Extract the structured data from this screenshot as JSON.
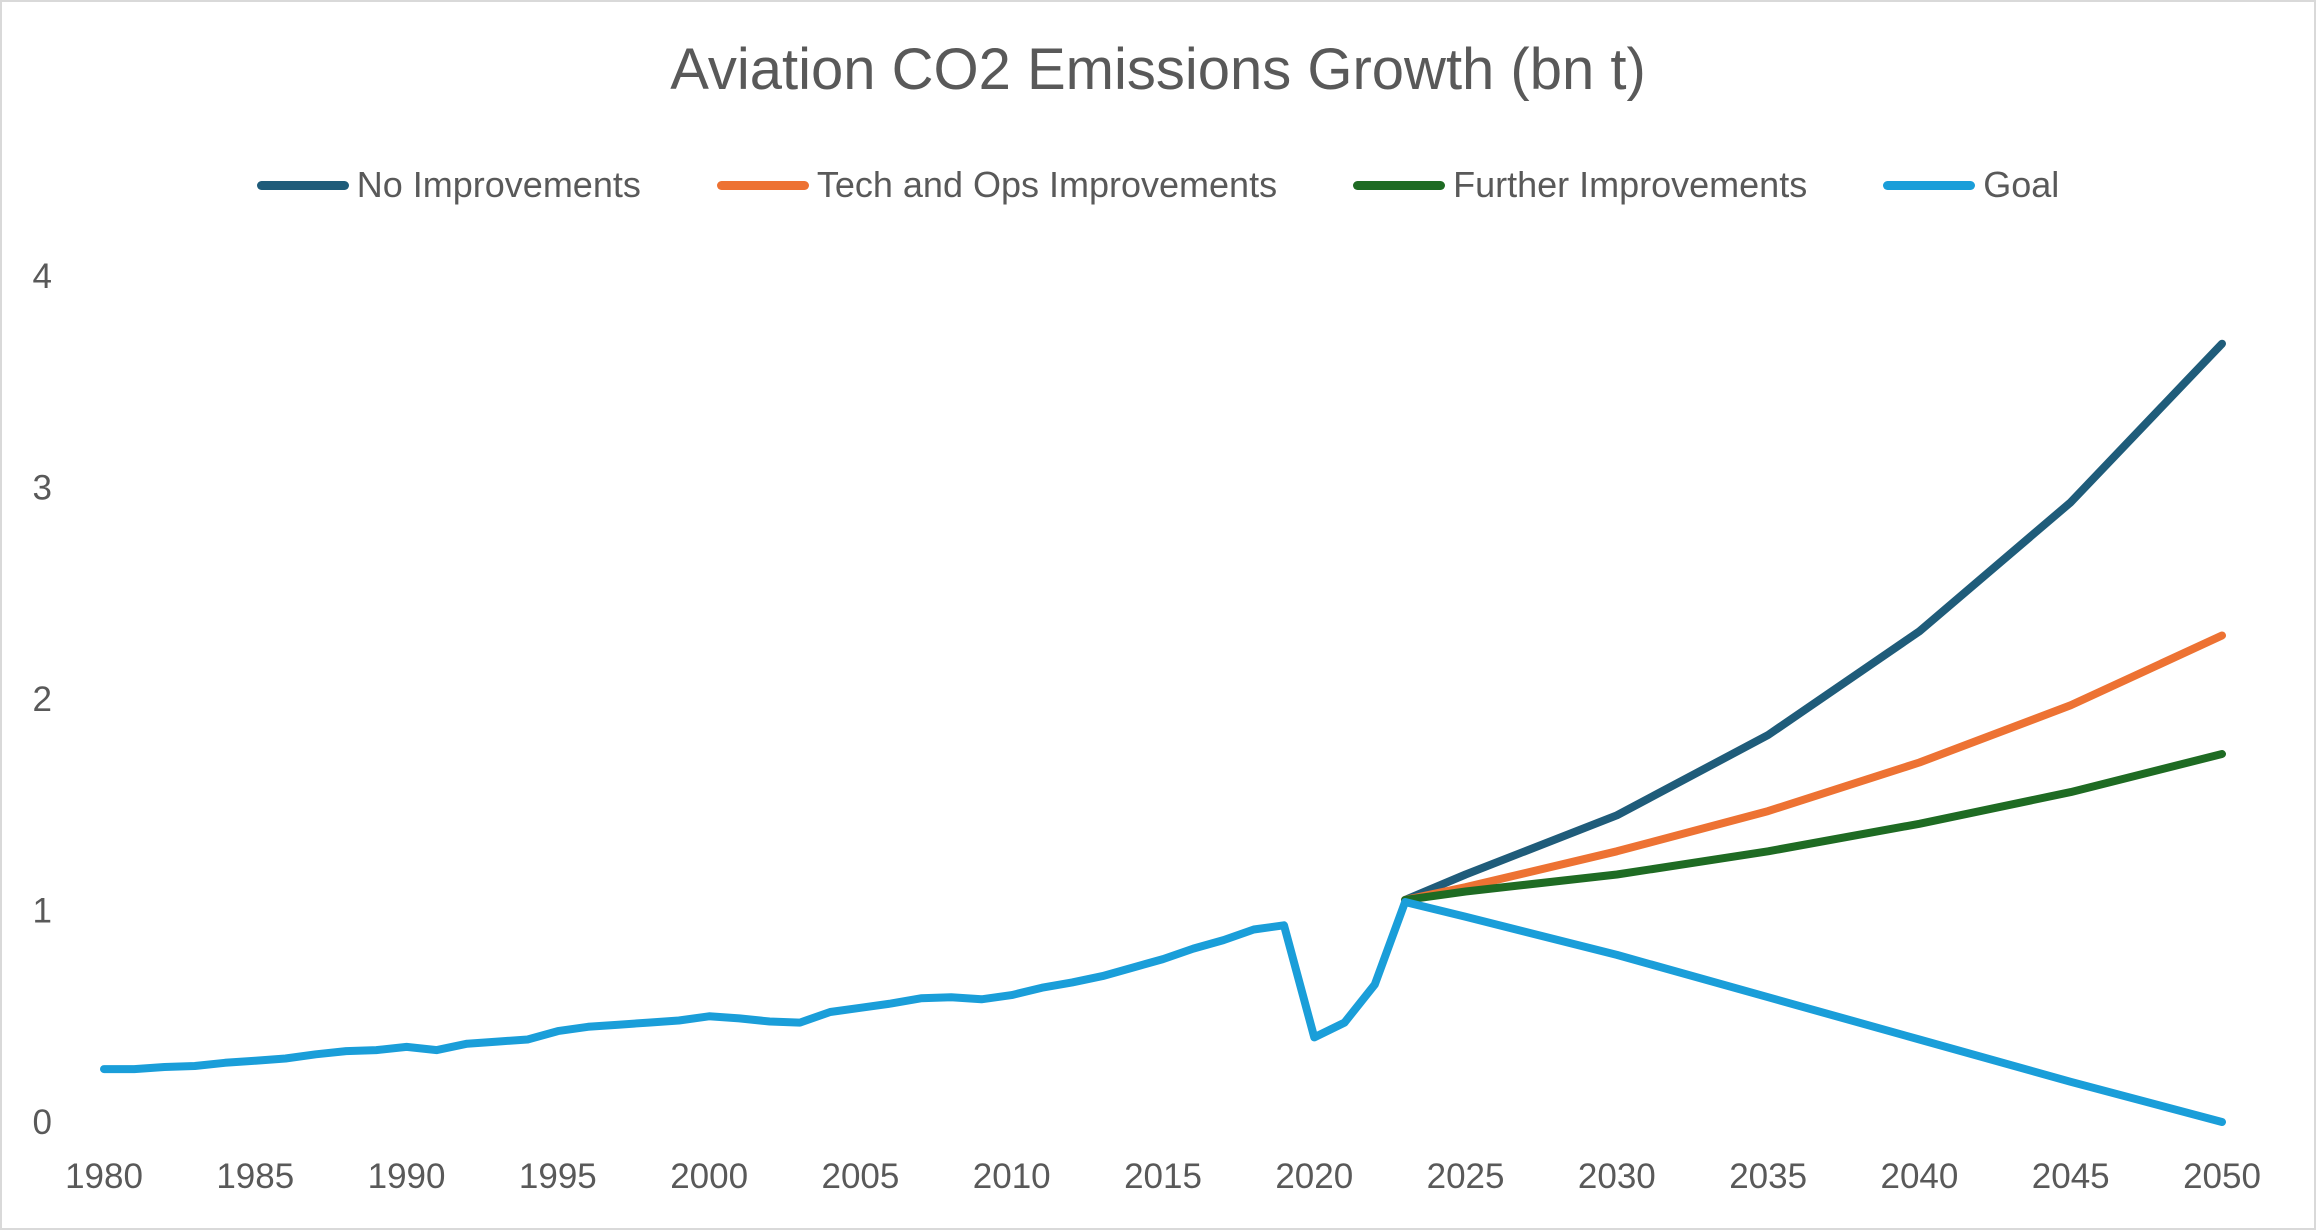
{
  "chart_data": {
    "type": "line",
    "title": "Aviation CO2 Emissions Growth (bn t)",
    "xlabel": "",
    "ylabel": "",
    "xlim": [
      1980,
      2050
    ],
    "ylim": [
      0,
      4
    ],
    "x_ticks": [
      "1980",
      "1985",
      "1990",
      "1995",
      "2000",
      "2005",
      "2010",
      "2015",
      "2020",
      "2025",
      "2030",
      "2035",
      "2040",
      "2045",
      "2050"
    ],
    "y_ticks": [
      "0",
      "1",
      "2",
      "3",
      "4"
    ],
    "grid": false,
    "legend_position": "top",
    "series": [
      {
        "name": "No Improvements",
        "color": "#1f5c7a",
        "x": [
          2023,
          2025,
          2030,
          2035,
          2040,
          2045,
          2050
        ],
        "y": [
          1.05,
          1.17,
          1.45,
          1.83,
          2.32,
          2.93,
          3.68
        ]
      },
      {
        "name": "Tech and Ops Improvements",
        "color": "#ed7233",
        "x": [
          2023,
          2025,
          2030,
          2035,
          2040,
          2045,
          2050
        ],
        "y": [
          1.05,
          1.11,
          1.28,
          1.47,
          1.7,
          1.97,
          2.3
        ]
      },
      {
        "name": "Further Improvements",
        "color": "#1e6b23",
        "x": [
          2023,
          2025,
          2030,
          2035,
          2040,
          2045,
          2050
        ],
        "y": [
          1.05,
          1.09,
          1.17,
          1.28,
          1.41,
          1.56,
          1.74
        ]
      },
      {
        "name": "Goal",
        "color": "#1a9ed9",
        "x": [
          1980,
          1981,
          1982,
          1983,
          1984,
          1985,
          1986,
          1987,
          1988,
          1989,
          1990,
          1991,
          1992,
          1993,
          1994,
          1995,
          1996,
          1997,
          1998,
          1999,
          2000,
          2001,
          2002,
          2003,
          2004,
          2005,
          2006,
          2007,
          2008,
          2009,
          2010,
          2011,
          2012,
          2013,
          2014,
          2015,
          2016,
          2017,
          2018,
          2019,
          2020,
          2021,
          2022,
          2023,
          2025,
          2030,
          2035,
          2040,
          2045,
          2050
        ],
        "y": [
          0.25,
          0.25,
          0.26,
          0.265,
          0.28,
          0.29,
          0.3,
          0.32,
          0.335,
          0.34,
          0.355,
          0.34,
          0.37,
          0.38,
          0.39,
          0.43,
          0.45,
          0.46,
          0.47,
          0.48,
          0.5,
          0.49,
          0.475,
          0.47,
          0.52,
          0.54,
          0.56,
          0.585,
          0.59,
          0.58,
          0.6,
          0.635,
          0.66,
          0.69,
          0.73,
          0.77,
          0.82,
          0.86,
          0.91,
          0.93,
          0.4,
          0.47,
          0.65,
          1.04,
          0.97,
          0.79,
          0.59,
          0.39,
          0.19,
          0.0
        ]
      }
    ]
  }
}
